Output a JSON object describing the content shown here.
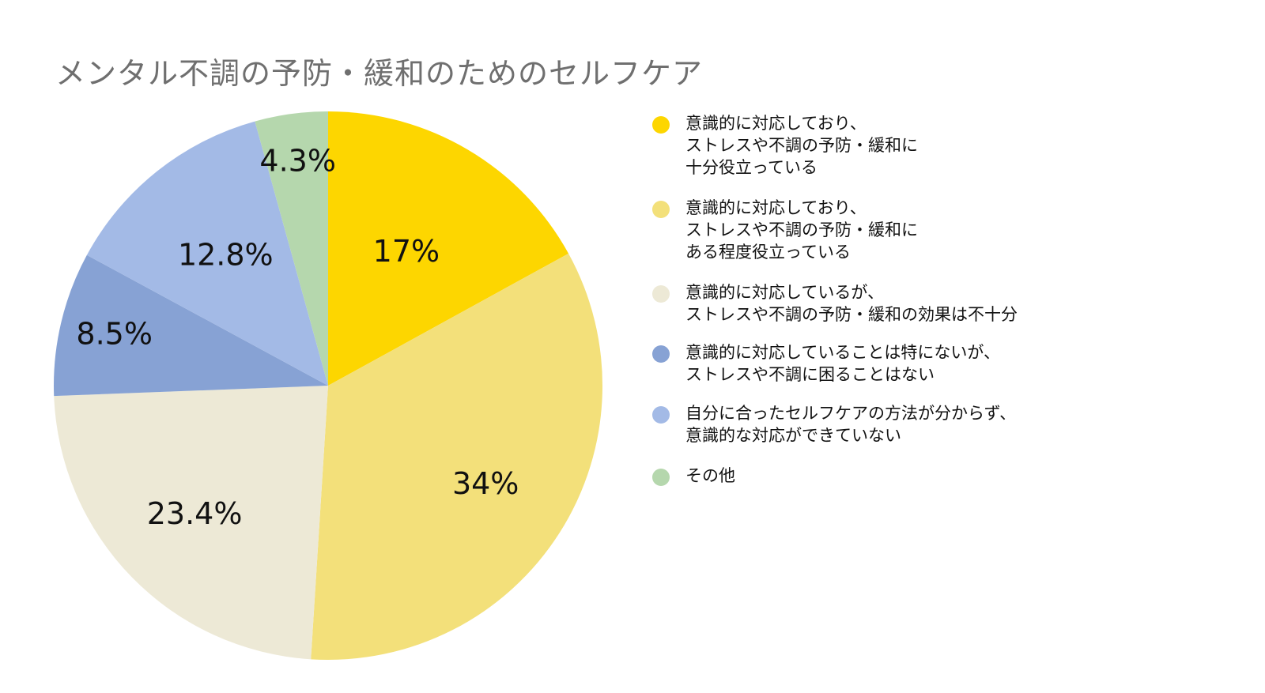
{
  "chart_data": {
    "type": "pie",
    "title": "メンタル不調の予防・緩和のためのセルフケア",
    "start": "top",
    "direction": "clockwise",
    "slices": [
      {
        "value": 17,
        "label": "17%",
        "color": "#FDD600",
        "legend": [
          "意識的に対応しており、",
          "ストレスや不調の予防・緩和に",
          "十分役立っている"
        ]
      },
      {
        "value": 34,
        "label": "34%",
        "color": "#F3E07A",
        "legend": [
          "意識的に対応しており、",
          "ストレスや不調の予防・緩和に",
          "ある程度役立っている"
        ]
      },
      {
        "value": 23.4,
        "label": "23.4%",
        "color": "#EDE9D6",
        "legend": [
          "意識的に対応しているが、",
          "ストレスや不調の予防・緩和の効果は不十分"
        ]
      },
      {
        "value": 8.5,
        "label": "8.5%",
        "color": "#87A2D4",
        "legend": [
          "意識的に対応していることは特にないが、",
          "ストレスや不調に困ることはない"
        ]
      },
      {
        "value": 12.8,
        "label": "12.8%",
        "color": "#A3BAE6",
        "legend": [
          "自分に合ったセルフケアの方法が分からず、",
          "意識的な対応ができていない"
        ]
      },
      {
        "value": 4.3,
        "label": "4.3%",
        "color": "#B5D7AD",
        "legend": [
          "その他"
        ]
      }
    ],
    "legend_position": "right"
  }
}
